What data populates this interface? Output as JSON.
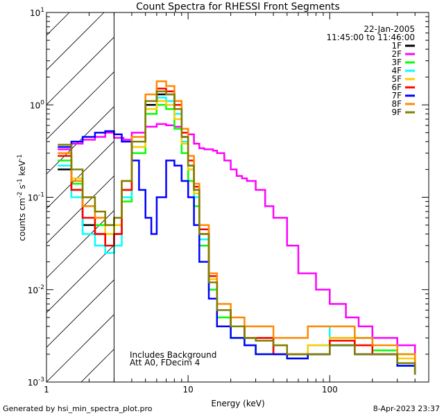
{
  "chart_data": {
    "type": "line",
    "title": "Count Spectra for RHESSI Front Segments",
    "xlabel": "Energy (keV)",
    "ylabel_main": "counts cm",
    "ylabel_units": [
      "-2",
      " s",
      "-1",
      " keV",
      "-1"
    ],
    "xscale": "log",
    "yscale": "log",
    "xlim": [
      1,
      500
    ],
    "ylim": [
      0.001,
      10
    ],
    "x_tick_labels": [
      "1",
      "10",
      "100"
    ],
    "y_tick_labels": [
      {
        "base": "10",
        "exp": "-3",
        "value": 0.001
      },
      {
        "base": "10",
        "exp": "-2",
        "value": 0.01
      },
      {
        "base": "10",
        "exp": "-1",
        "value": 0.1
      },
      {
        "base": "10",
        "exp": "0",
        "value": 1
      },
      {
        "base": "10",
        "exp": "1",
        "value": 10
      }
    ],
    "shaded_below_keV": 3,
    "date": "22-Jan-2005",
    "time_range": "11:45:00 to 11:46:00",
    "annotation": [
      "Includes Background",
      "Att A0, FDecim 4"
    ],
    "series": [
      {
        "name": "1F",
        "color": "#000000",
        "x": [
          1.2,
          1.5,
          1.8,
          2.2,
          2.6,
          3.0,
          3.4,
          4,
          5,
          6,
          7,
          8,
          9,
          10,
          11,
          12,
          14,
          16,
          20,
          25,
          30,
          40,
          50,
          70,
          100,
          150,
          200,
          300,
          400
        ],
        "y": [
          0.2,
          0.12,
          0.05,
          0.04,
          0.03,
          0.04,
          0.12,
          0.4,
          1.0,
          1.3,
          1.3,
          0.9,
          0.45,
          0.22,
          0.12,
          0.04,
          0.012,
          0.006,
          0.004,
          0.003,
          0.003,
          0.002,
          0.002,
          0.002,
          0.003,
          0.002,
          0.002,
          0.0015,
          0.0012
        ]
      },
      {
        "name": "2F",
        "color": "#ff00ff",
        "x": [
          1.2,
          1.5,
          1.8,
          2.2,
          2.6,
          3.0,
          3.5,
          4,
          5,
          6,
          7,
          8,
          9,
          10,
          11,
          12,
          13,
          14,
          15,
          16,
          18,
          20,
          22,
          24,
          26,
          30,
          35,
          40,
          50,
          60,
          80,
          100,
          130,
          160,
          200,
          300,
          400
        ],
        "y": [
          0.33,
          0.38,
          0.42,
          0.45,
          0.5,
          0.44,
          0.42,
          0.5,
          0.58,
          0.62,
          0.6,
          0.58,
          0.55,
          0.48,
          0.38,
          0.34,
          0.33,
          0.33,
          0.32,
          0.3,
          0.25,
          0.2,
          0.17,
          0.16,
          0.15,
          0.12,
          0.08,
          0.06,
          0.03,
          0.015,
          0.01,
          0.007,
          0.005,
          0.004,
          0.003,
          0.0025,
          0.002
        ]
      },
      {
        "name": "3F",
        "color": "#00ff00",
        "x": [
          1.2,
          1.5,
          1.8,
          2.2,
          2.6,
          3.0,
          3.4,
          4,
          5,
          6,
          7,
          8,
          9,
          10,
          11,
          12,
          14,
          16,
          20,
          25,
          30,
          40,
          50,
          70,
          100,
          150,
          200,
          300,
          400
        ],
        "y": [
          0.25,
          0.14,
          0.08,
          0.05,
          0.04,
          0.05,
          0.09,
          0.3,
          0.8,
          1.0,
          0.9,
          0.55,
          0.3,
          0.15,
          0.08,
          0.03,
          0.01,
          0.005,
          0.003,
          0.0025,
          0.002,
          0.002,
          0.0018,
          0.002,
          0.0025,
          0.003,
          0.0022,
          0.002,
          0.0015
        ]
      },
      {
        "name": "4F",
        "color": "#00ffff",
        "x": [
          1.2,
          1.5,
          1.8,
          2.2,
          2.6,
          3.0,
          3.4,
          4,
          5,
          6,
          7,
          8,
          9,
          10,
          11,
          12,
          14,
          16,
          20,
          25,
          30,
          40,
          50,
          70,
          100,
          150,
          200,
          300,
          400
        ],
        "y": [
          0.22,
          0.1,
          0.04,
          0.03,
          0.025,
          0.03,
          0.1,
          0.35,
          0.9,
          1.2,
          1.1,
          0.8,
          0.4,
          0.2,
          0.1,
          0.035,
          0.012,
          0.006,
          0.004,
          0.003,
          0.003,
          0.002,
          0.002,
          0.0025,
          0.004,
          0.003,
          0.002,
          0.0015,
          0.0012
        ]
      },
      {
        "name": "5F",
        "color": "#ffcc00",
        "x": [
          1.2,
          1.5,
          1.8,
          2.2,
          2.6,
          3.0,
          3.4,
          4,
          5,
          6,
          7,
          8,
          9,
          10,
          11,
          12,
          14,
          16,
          20,
          25,
          30,
          40,
          50,
          70,
          100,
          150,
          200,
          300,
          400
        ],
        "y": [
          0.3,
          0.16,
          0.1,
          0.06,
          0.04,
          0.05,
          0.12,
          0.35,
          0.9,
          1.1,
          1.0,
          0.7,
          0.38,
          0.2,
          0.11,
          0.04,
          0.013,
          0.006,
          0.004,
          0.003,
          0.003,
          0.0025,
          0.002,
          0.0025,
          0.003,
          0.0025,
          0.002,
          0.0018,
          0.0013
        ]
      },
      {
        "name": "6F",
        "color": "#ff0000",
        "x": [
          1.2,
          1.5,
          1.8,
          2.2,
          2.6,
          3.0,
          3.4,
          4,
          5,
          6,
          7,
          8,
          9,
          10,
          11,
          12,
          14,
          16,
          20,
          25,
          30,
          40,
          50,
          70,
          100,
          150,
          200,
          300,
          400
        ],
        "y": [
          0.28,
          0.12,
          0.06,
          0.04,
          0.03,
          0.04,
          0.12,
          0.4,
          1.1,
          1.5,
          1.4,
          1.0,
          0.5,
          0.25,
          0.13,
          0.045,
          0.014,
          0.006,
          0.004,
          0.003,
          0.003,
          0.002,
          0.002,
          0.002,
          0.0028,
          0.0025,
          0.002,
          0.0016,
          0.0012
        ]
      },
      {
        "name": "7F",
        "color": "#0000ff",
        "x": [
          1.2,
          1.5,
          1.8,
          2.2,
          2.6,
          3.0,
          3.4,
          4,
          4.5,
          5,
          5.5,
          6,
          7,
          8,
          9,
          10,
          11,
          12,
          14,
          16,
          20,
          25,
          30,
          40,
          50,
          70,
          100,
          150,
          200,
          300,
          400
        ],
        "y": [
          0.35,
          0.4,
          0.45,
          0.5,
          0.52,
          0.48,
          0.4,
          0.25,
          0.12,
          0.06,
          0.04,
          0.1,
          0.25,
          0.22,
          0.15,
          0.1,
          0.05,
          0.02,
          0.008,
          0.004,
          0.003,
          0.0025,
          0.002,
          0.002,
          0.0018,
          0.002,
          0.0025,
          0.002,
          0.002,
          0.0015,
          0.0012
        ]
      },
      {
        "name": "8F",
        "color": "#ff8800",
        "x": [
          1.2,
          1.5,
          1.8,
          2.2,
          2.6,
          3.0,
          3.4,
          4,
          5,
          6,
          7,
          8,
          9,
          10,
          11,
          12,
          14,
          16,
          20,
          25,
          30,
          40,
          50,
          70,
          100,
          150,
          200,
          300,
          400
        ],
        "y": [
          0.3,
          0.15,
          0.08,
          0.06,
          0.05,
          0.06,
          0.15,
          0.45,
          1.3,
          1.8,
          1.6,
          1.1,
          0.55,
          0.28,
          0.14,
          0.05,
          0.015,
          0.007,
          0.005,
          0.004,
          0.004,
          0.003,
          0.003,
          0.004,
          0.004,
          0.003,
          0.0025,
          0.002,
          0.0015
        ]
      },
      {
        "name": "9F",
        "color": "#808000",
        "x": [
          1.2,
          1.5,
          1.8,
          2.2,
          2.6,
          3.0,
          3.4,
          4,
          5,
          6,
          7,
          8,
          9,
          10,
          11,
          12,
          14,
          16,
          20,
          25,
          30,
          40,
          50,
          70,
          100,
          150,
          200,
          300,
          400
        ],
        "y": [
          0.37,
          0.2,
          0.1,
          0.07,
          0.05,
          0.06,
          0.15,
          0.4,
          1.1,
          1.4,
          1.3,
          0.9,
          0.45,
          0.22,
          0.12,
          0.04,
          0.012,
          0.006,
          0.004,
          0.003,
          0.0028,
          0.0025,
          0.002,
          0.002,
          0.0025,
          0.002,
          0.002,
          0.0016,
          0.0012
        ]
      }
    ]
  },
  "footer": {
    "left": "Generated by hsi_min_spectra_plot.pro",
    "right": "8-Apr-2023 23:37"
  }
}
